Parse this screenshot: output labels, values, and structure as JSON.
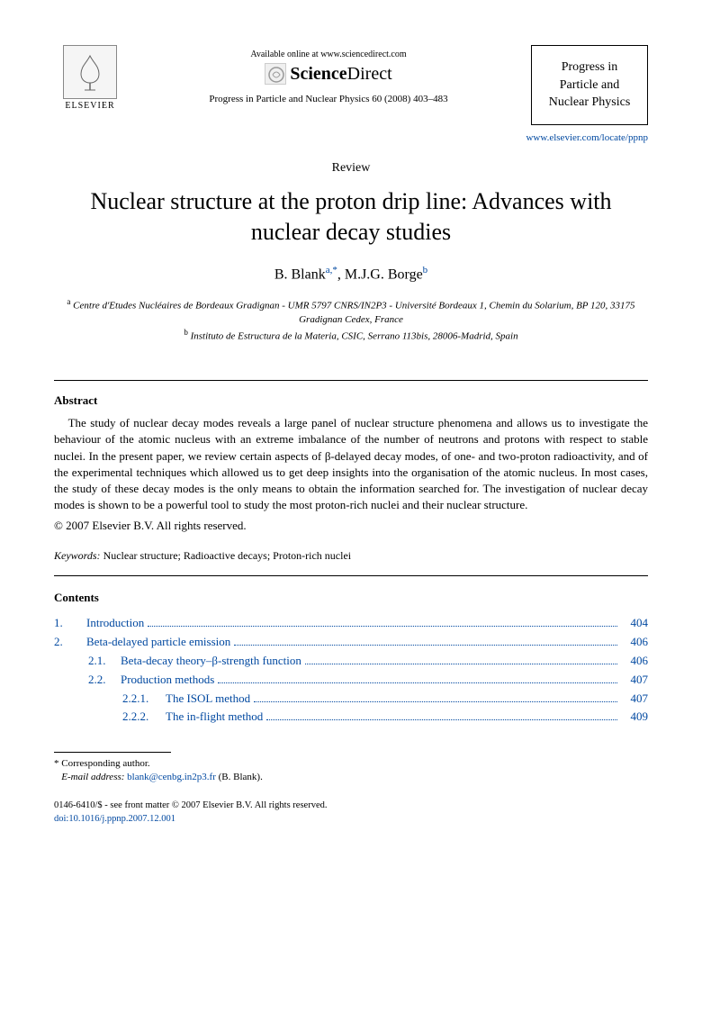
{
  "header": {
    "elsevier_label": "ELSEVIER",
    "available_text": "Available online at www.sciencedirect.com",
    "sd_brand_a": "Science",
    "sd_brand_b": "Direct",
    "journal_ref": "Progress in Particle and Nuclear Physics 60 (2008) 403–483",
    "journal_box_line1": "Progress in",
    "journal_box_line2": "Particle and",
    "journal_box_line3": "Nuclear Physics",
    "journal_link": "www.elsevier.com/locate/ppnp"
  },
  "article": {
    "type_label": "Review",
    "title": "Nuclear structure at the proton drip line: Advances with nuclear decay studies",
    "author1": "B. Blank",
    "author1_sup": "a,*",
    "author2": "M.J.G. Borge",
    "author2_sup": "b",
    "affil_a_sup": "a",
    "affil_a": "Centre d'Etudes Nucléaires de Bordeaux Gradignan - UMR 5797 CNRS/IN2P3 - Université Bordeaux 1, Chemin du Solarium, BP 120, 33175 Gradignan Cedex, France",
    "affil_b_sup": "b",
    "affil_b": "Instituto de Estructura de la Materia, CSIC, Serrano 113bis, 28006-Madrid, Spain"
  },
  "abstract": {
    "heading": "Abstract",
    "body": "The study of nuclear decay modes reveals a large panel of nuclear structure phenomena and allows us to investigate the behaviour of the atomic nucleus with an extreme imbalance of the number of neutrons and protons with respect to stable nuclei. In the present paper, we review certain aspects of β-delayed decay modes, of one- and two-proton radioactivity, and of the experimental techniques which allowed us to get deep insights into the organisation of the atomic nucleus. In most cases, the study of these decay modes is the only means to obtain the information searched for. The investigation of nuclear decay modes is shown to be a powerful tool to study the most proton-rich nuclei and their nuclear structure.",
    "copyright": "© 2007 Elsevier B.V. All rights reserved."
  },
  "keywords": {
    "label": "Keywords:",
    "text": " Nuclear structure; Radioactive decays; Proton-rich nuclei"
  },
  "contents": {
    "heading": "Contents",
    "items": [
      {
        "num": "1.",
        "label": "Introduction",
        "page": "404",
        "indent": 0
      },
      {
        "num": "2.",
        "label": "Beta-delayed particle emission",
        "page": "406",
        "indent": 0
      },
      {
        "num": "2.1.",
        "label": "Beta-decay theory–β-strength function",
        "page": "406",
        "indent": 1
      },
      {
        "num": "2.2.",
        "label": "Production methods",
        "page": "407",
        "indent": 1
      },
      {
        "num": "2.2.1.",
        "label": "The ISOL method",
        "page": "407",
        "indent": 2
      },
      {
        "num": "2.2.2.",
        "label": "The in-flight method",
        "page": "409",
        "indent": 2
      }
    ]
  },
  "footnote": {
    "corr": "* Corresponding author.",
    "email_label": "E-mail address:",
    "email": "blank@cenbg.in2p3.fr",
    "email_paren": "(B. Blank)."
  },
  "footer": {
    "line1": "0146-6410/$ - see front matter © 2007 Elsevier B.V. All rights reserved.",
    "doi_label": "doi:",
    "doi": "10.1016/j.ppnp.2007.12.001"
  }
}
